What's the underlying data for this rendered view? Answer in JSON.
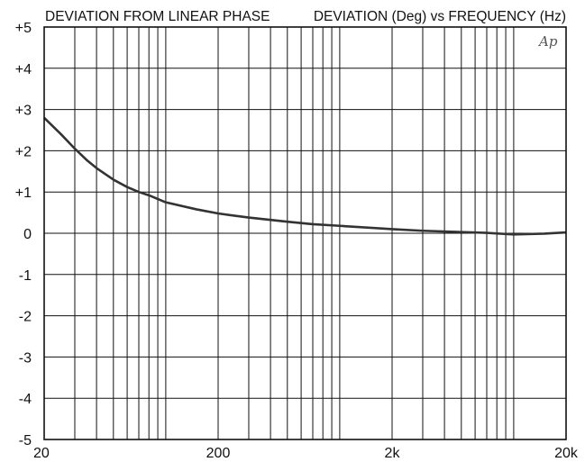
{
  "chart_data": {
    "type": "line",
    "title_left": "DEVIATION FROM LINEAR PHASE",
    "title_right": "DEVIATION (Deg) vs FREQUENCY (Hz)",
    "logo_text": "Ap",
    "x_scale": "log",
    "xlim": [
      20,
      20000
    ],
    "ylim": [
      -5,
      5
    ],
    "grid": true,
    "x_tick_values": [
      20,
      200,
      2000,
      20000
    ],
    "x_tick_labels": [
      "20",
      "200",
      "2k",
      "20k"
    ],
    "y_tick_values": [
      5,
      4,
      3,
      2,
      1,
      0,
      -1,
      -2,
      -3,
      -4,
      -5
    ],
    "y_tick_labels": [
      "+5",
      "+4",
      "+3",
      "+2",
      "+1",
      "0",
      "-1",
      "-2",
      "-3",
      "-4",
      "-5"
    ],
    "series": [
      {
        "color": "#333333",
        "x": [
          20,
          25,
          30,
          35,
          40,
          50,
          60,
          70,
          80,
          100,
          150,
          200,
          300,
          500,
          700,
          1000,
          2000,
          3000,
          5000,
          7000,
          10000,
          15000,
          20000
        ],
        "y": [
          2.8,
          2.4,
          2.05,
          1.78,
          1.58,
          1.3,
          1.12,
          1.0,
          0.92,
          0.75,
          0.58,
          0.48,
          0.38,
          0.28,
          0.22,
          0.18,
          0.1,
          0.06,
          0.03,
          0.01,
          -0.03,
          -0.01,
          0.02
        ]
      }
    ]
  }
}
